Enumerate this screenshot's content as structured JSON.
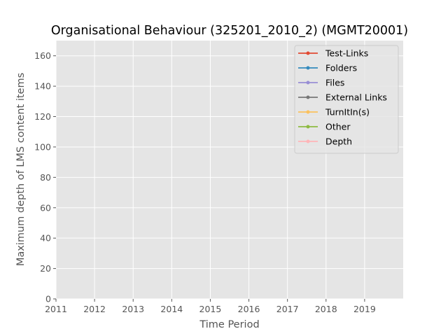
{
  "chart_data": {
    "type": "line",
    "title": "Organisational Behaviour (325201_2010_2) (MGMT20001)",
    "xlabel": "Time Period",
    "ylabel": "Maximum depth of LMS content items",
    "xlim": [
      2011,
      2020
    ],
    "ylim": [
      0,
      170
    ],
    "x_ticks": [
      2011,
      2012,
      2013,
      2014,
      2015,
      2016,
      2017,
      2018,
      2019
    ],
    "y_ticks": [
      0,
      20,
      40,
      60,
      80,
      100,
      120,
      140,
      160
    ],
    "grid": true,
    "legend_position": "top-right",
    "series": [
      {
        "name": "Test-Links",
        "color": "#E24A33",
        "values": []
      },
      {
        "name": "Folders",
        "color": "#348ABD",
        "values": []
      },
      {
        "name": "Files",
        "color": "#988ED5",
        "values": []
      },
      {
        "name": "External Links",
        "color": "#777777",
        "values": []
      },
      {
        "name": "TurnItIn(s)",
        "color": "#FBC15E",
        "values": []
      },
      {
        "name": "Other",
        "color": "#8EBA42",
        "values": []
      },
      {
        "name": "Depth",
        "color": "#FFB5B8",
        "values": []
      }
    ],
    "plot_background": "#E5E5E5",
    "grid_color": "#FFFFFF"
  }
}
